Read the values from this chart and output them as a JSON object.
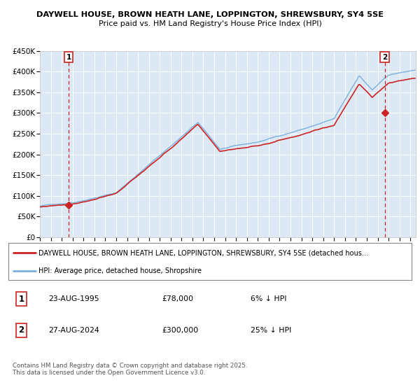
{
  "title": "DAYWELL HOUSE, BROWN HEATH LANE, LOPPINGTON, SHREWSBURY, SY4 5SE",
  "subtitle": "Price paid vs. HM Land Registry's House Price Index (HPI)",
  "bg_color": "#dce9f5",
  "hpi_color": "#7aafe0",
  "price_color": "#cc2222",
  "marker_color": "#cc2222",
  "dashed_line_color": "#cc2222",
  "grid_color": "#ffffff",
  "ylim": [
    0,
    450000
  ],
  "yticks": [
    0,
    50000,
    100000,
    150000,
    200000,
    250000,
    300000,
    350000,
    400000,
    450000
  ],
  "ytick_labels": [
    "£0",
    "£50K",
    "£100K",
    "£150K",
    "£200K",
    "£250K",
    "£300K",
    "£350K",
    "£400K",
    "£450K"
  ],
  "sale1_year": 1995.65,
  "sale1_price": 78000,
  "sale2_year": 2024.65,
  "sale2_price": 300000,
  "legend_line1": "DAYWELL HOUSE, BROWN HEATH LANE, LOPPINGTON, SHREWSBURY, SY4 5SE (detached hous…",
  "legend_line2": "HPI: Average price, detached house, Shropshire",
  "sale1_label": "1",
  "sale2_label": "2",
  "sale1_date": "23-AUG-1995",
  "sale1_price_str": "£78,000",
  "sale1_pct": "6% ↓ HPI",
  "sale2_date": "27-AUG-2024",
  "sale2_price_str": "£300,000",
  "sale2_pct": "25% ↓ HPI",
  "footnote": "Contains HM Land Registry data © Crown copyright and database right 2025.\nThis data is licensed under the Open Government Licence v3.0.",
  "xlim_start": 1993,
  "xlim_end": 2027.5
}
